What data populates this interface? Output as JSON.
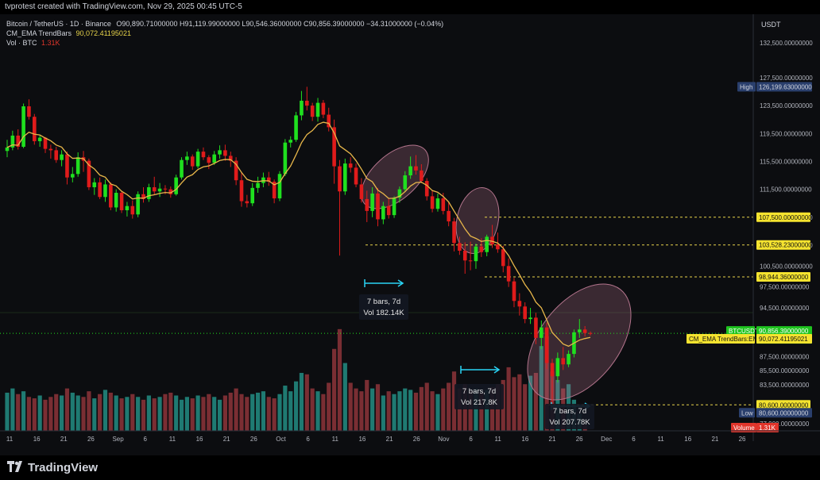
{
  "header": {
    "credit": "tvprotest created with TradingView.com, Nov 29, 2025 00:45 UTC-5"
  },
  "legend": {
    "symbol": "Bitcoin / TetherUS · 1D · Binance",
    "ohlc": "O90,890.71000000  H91,119.99000000  L90,546.36000000  C90,856.39000000  −34.31000000 (−0.04%)",
    "ema_name": "CM_EMA TrendBars",
    "ema_value": "90,072.41195021",
    "vol_name": "Vol · BTC",
    "vol_value": "1.31K"
  },
  "colors": {
    "up": "#1fe01f",
    "down": "#e01b1b",
    "ema": "#e8b74a",
    "vol_up": "#1f7a72",
    "vol_down": "#7a2e33",
    "ellipse": "#b3748c"
  },
  "price_axis": {
    "currency": "USDT",
    "ticks": [
      "132,500.00000000",
      "127,500.00000000",
      "123,500.00000000",
      "119,500.00000000",
      "115,500.00000000",
      "111,500.00000000",
      "107,500.00000000",
      "103,500.00000000",
      "100,500.00000000",
      "97,500.00000000",
      "94,500.00000000",
      "91,500.00000000",
      "87,500.00000000",
      "85,500.00000000",
      "83,500.00000000",
      "79,500.00000000",
      "77,900.00000000"
    ],
    "high_label": "High",
    "high_value": "126,199.63000000",
    "low_label": "Low",
    "low_value": "80,600.00000000",
    "symbol_tag": "BTCUSDT",
    "last_price": "90,856.39000000",
    "countdown": "18:14:20",
    "ema_tag": "CM_EMA TrendBars:EMA",
    "ema_tag_value": "90,072.41195021",
    "volume_tag": "Volume",
    "volume_tag_value": "1.31K",
    "levels": [
      "107,500.00000000",
      "103,528.23000000",
      "98,944.36000000",
      "80,600.00000000"
    ]
  },
  "time_axis": {
    "labels": [
      "11",
      "16",
      "21",
      "26",
      "Sep",
      "6",
      "11",
      "16",
      "21",
      "26",
      "Oct",
      "6",
      "11",
      "16",
      "21",
      "26",
      "Nov",
      "6",
      "11",
      "16",
      "21",
      "26",
      "Dec",
      "6",
      "11",
      "16",
      "21",
      "26"
    ]
  },
  "measurements": [
    {
      "bars": "7 bars, 7d",
      "vol": "Vol 182.14K"
    },
    {
      "bars": "7 bars, 7d",
      "vol": "Vol 217.8K"
    },
    {
      "bars": "7 bars, 7d",
      "vol": "Vol 207.78K"
    }
  ],
  "footer": {
    "brand": "TradingView"
  },
  "chart_data": {
    "type": "candlestick",
    "title": "",
    "ylim": [
      77000,
      134000
    ],
    "levels": [
      107500,
      103528.23,
      98944.36,
      80600
    ],
    "high": 126199.63,
    "low": 80600,
    "last": 90856.39,
    "candles": [
      [
        117000,
        118600,
        116100,
        117500
      ],
      [
        117500,
        119900,
        117100,
        119200
      ],
      [
        119200,
        120100,
        117200,
        117600
      ],
      [
        117600,
        123800,
        117400,
        123400
      ],
      [
        123400,
        124400,
        121500,
        121900
      ],
      [
        121900,
        122300,
        117900,
        118400
      ],
      [
        118400,
        119300,
        117600,
        118900
      ],
      [
        118900,
        119000,
        116700,
        117300
      ],
      [
        117300,
        117900,
        115900,
        117100
      ],
      [
        117100,
        117600,
        115300,
        115700
      ],
      [
        115700,
        117100,
        114800,
        116500
      ],
      [
        116500,
        116900,
        112200,
        113200
      ],
      [
        113200,
        114700,
        112500,
        113700
      ],
      [
        113700,
        116800,
        113300,
        116100
      ],
      [
        116100,
        117000,
        114000,
        115600
      ],
      [
        115600,
        115900,
        111400,
        111800
      ],
      [
        111800,
        113100,
        110700,
        112500
      ],
      [
        112500,
        113200,
        110100,
        110400
      ],
      [
        110400,
        112900,
        109700,
        112200
      ],
      [
        112200,
        112500,
        108500,
        108900
      ],
      [
        108900,
        111500,
        108300,
        111000
      ],
      [
        111000,
        111300,
        108100,
        108500
      ],
      [
        108500,
        109700,
        107600,
        109100
      ],
      [
        109100,
        109900,
        107300,
        107900
      ],
      [
        107900,
        111200,
        107500,
        110800
      ],
      [
        110800,
        111800,
        109600,
        110100
      ],
      [
        110100,
        112300,
        109700,
        111800
      ],
      [
        111800,
        113300,
        110700,
        111200
      ],
      [
        111200,
        112400,
        110400,
        111600
      ],
      [
        111600,
        112100,
        110800,
        111500
      ],
      [
        111500,
        111900,
        110300,
        110800
      ],
      [
        110800,
        113600,
        110600,
        113200
      ],
      [
        113200,
        116100,
        112900,
        115700
      ],
      [
        115700,
        116900,
        115000,
        116200
      ],
      [
        116200,
        116500,
        114300,
        114800
      ],
      [
        114800,
        117300,
        114500,
        116900
      ],
      [
        116900,
        117500,
        115700,
        116100
      ],
      [
        116100,
        116400,
        114400,
        115300
      ],
      [
        115300,
        117000,
        115000,
        116500
      ],
      [
        116500,
        117800,
        115900,
        117100
      ],
      [
        117100,
        117900,
        115600,
        116300
      ],
      [
        116300,
        116900,
        114700,
        115600
      ],
      [
        115600,
        116100,
        112100,
        112800
      ],
      [
        112800,
        114000,
        109000,
        109800
      ],
      [
        109800,
        110700,
        108900,
        109500
      ],
      [
        109500,
        112400,
        109100,
        111700
      ],
      [
        111700,
        113300,
        111000,
        112400
      ],
      [
        112400,
        113900,
        111800,
        113200
      ],
      [
        113200,
        114000,
        112000,
        112600
      ],
      [
        112600,
        112900,
        109500,
        110200
      ],
      [
        110200,
        114100,
        109800,
        113700
      ],
      [
        113700,
        118700,
        113400,
        118200
      ],
      [
        118200,
        119100,
        117500,
        118600
      ],
      [
        118600,
        122600,
        118300,
        122100
      ],
      [
        122100,
        125600,
        121400,
        124200
      ],
      [
        124200,
        126199,
        122800,
        123500
      ],
      [
        123500,
        123900,
        121300,
        121900
      ],
      [
        121900,
        124600,
        121200,
        123900
      ],
      [
        123900,
        124300,
        121700,
        122200
      ],
      [
        122200,
        123200,
        119800,
        120400
      ],
      [
        120400,
        121500,
        112300,
        114800
      ],
      [
        114800,
        115700,
        102000,
        111200
      ],
      [
        111200,
        115900,
        110700,
        115200
      ],
      [
        115200,
        116100,
        113900,
        114600
      ],
      [
        114600,
        115200,
        111800,
        112200
      ],
      [
        112200,
        113100,
        109600,
        110100
      ],
      [
        110100,
        111300,
        106800,
        108400
      ],
      [
        108400,
        111800,
        107500,
        110900
      ],
      [
        110900,
        111700,
        106200,
        107200
      ],
      [
        107200,
        109700,
        106500,
        109100
      ],
      [
        109100,
        110200,
        107300,
        107800
      ],
      [
        107800,
        110500,
        107400,
        110300
      ],
      [
        110300,
        111900,
        109600,
        111500
      ],
      [
        111500,
        114100,
        111100,
        113500
      ],
      [
        113500,
        116200,
        113000,
        114800
      ],
      [
        114800,
        116400,
        113600,
        114200
      ],
      [
        114200,
        115100,
        112400,
        112700
      ],
      [
        112700,
        113100,
        109900,
        110500
      ],
      [
        110500,
        111300,
        108200,
        108700
      ],
      [
        108700,
        110900,
        108300,
        110200
      ],
      [
        110200,
        111000,
        107900,
        108400
      ],
      [
        108400,
        109700,
        106200,
        106900
      ],
      [
        106900,
        107400,
        102600,
        103800
      ],
      [
        103800,
        104700,
        102100,
        102700
      ],
      [
        102700,
        103900,
        99400,
        101300
      ],
      [
        101300,
        104000,
        99900,
        101200
      ],
      [
        101200,
        103700,
        100100,
        103300
      ],
      [
        103300,
        104500,
        101800,
        102500
      ],
      [
        102500,
        105000,
        101900,
        104700
      ],
      [
        104700,
        106400,
        103100,
        103600
      ],
      [
        103600,
        105300,
        102400,
        102900
      ],
      [
        102900,
        103400,
        99600,
        100500
      ],
      [
        100500,
        101600,
        97500,
        98300
      ],
      [
        98300,
        98800,
        94600,
        95500
      ],
      [
        95500,
        96600,
        93400,
        94700
      ],
      [
        94700,
        95300,
        92300,
        92900
      ],
      [
        92900,
        94500,
        92200,
        93100
      ],
      [
        93100,
        93800,
        89300,
        90200
      ],
      [
        90200,
        92700,
        88600,
        91700
      ],
      [
        91700,
        92400,
        85700,
        86600
      ],
      [
        86600,
        87200,
        80600,
        84700
      ],
      [
        84700,
        88100,
        83800,
        87300
      ],
      [
        87300,
        88900,
        85600,
        86400
      ],
      [
        86400,
        88400,
        86000,
        87900
      ],
      [
        87900,
        91400,
        87400,
        91000
      ],
      [
        91000,
        92900,
        90200,
        91400
      ],
      [
        91400,
        91900,
        90400,
        90900
      ],
      [
        90890.71,
        91119.99,
        90546.36,
        90856.39
      ]
    ],
    "volumes": [
      27,
      30,
      26,
      28,
      24,
      23,
      25,
      22,
      24,
      26,
      25,
      30,
      27,
      25,
      24,
      28,
      23,
      26,
      29,
      27,
      25,
      23,
      24,
      26,
      24,
      22,
      25,
      23,
      24,
      26,
      27,
      25,
      22,
      24,
      23,
      25,
      24,
      26,
      24,
      22,
      25,
      27,
      30,
      26,
      24,
      26,
      27,
      28,
      24,
      23,
      26,
      32,
      28,
      35,
      41,
      40,
      30,
      28,
      26,
      34,
      58,
      72,
      48,
      34,
      30,
      28,
      36,
      30,
      33,
      25,
      28,
      26,
      28,
      30,
      29,
      27,
      31,
      34,
      28,
      26,
      30,
      34,
      42,
      30,
      33,
      28,
      30,
      27,
      29,
      31,
      33,
      36,
      45,
      38,
      40,
      33,
      39,
      41,
      60,
      67,
      42,
      36,
      30,
      33,
      22,
      12,
      4
    ]
  }
}
